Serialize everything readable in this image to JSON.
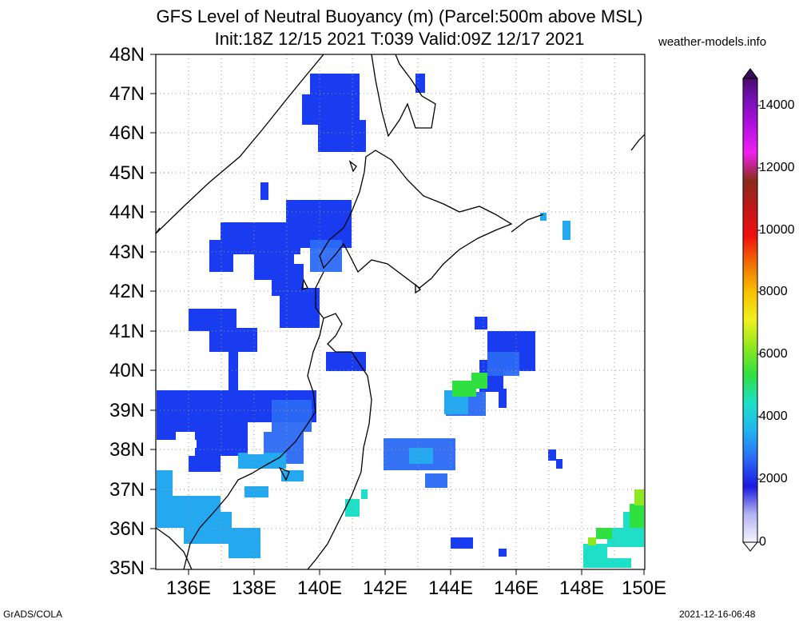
{
  "title_line1": "GFS Level of Neutral Buoyancy (m) (Parcel:500m above MSL)",
  "title_line2": "Init:18Z 12/15 2021 T:039 Valid:09Z 12/17 2021",
  "site_credit": "weather-models.info",
  "footer_left": "GrADS/COLA",
  "footer_right": "2021-12-16-06:48",
  "lat_labels": [
    "48N",
    "47N",
    "46N",
    "45N",
    "44N",
    "43N",
    "42N",
    "41N",
    "40N",
    "39N",
    "38N",
    "37N",
    "36N",
    "35N"
  ],
  "lon_labels": [
    "136E",
    "138E",
    "140E",
    "142E",
    "144E",
    "146E",
    "148E",
    "150E"
  ],
  "colorbar_labels": [
    "14000",
    "12000",
    "10000",
    "8000",
    "6000",
    "4000",
    "2000",
    "0"
  ],
  "colors": {
    "deep_blue": "#1a2cf0",
    "blue": "#2a5cf5",
    "sky_blue": "#2aa8f0",
    "cyan": "#1ee0e0",
    "green": "#2ed82e",
    "lime": "#8ee81e"
  }
}
